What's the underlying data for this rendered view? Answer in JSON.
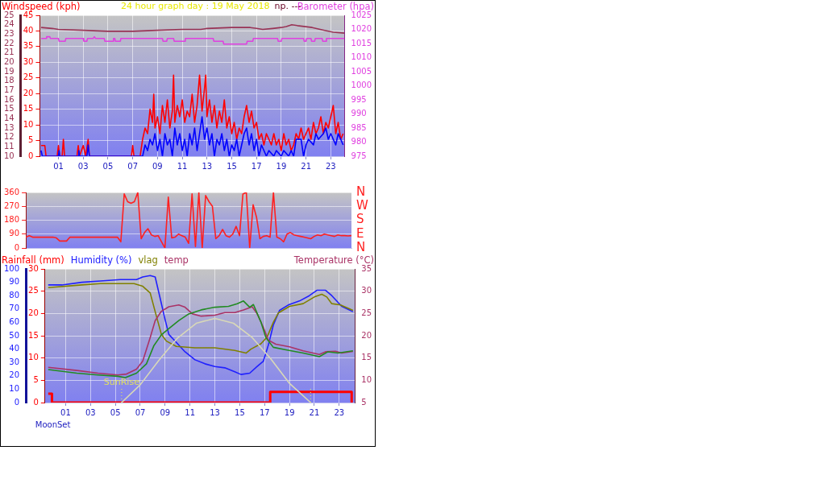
{
  "chart_data": [
    {
      "type": "line",
      "title": "24 hour graph day : 19 May 2018",
      "ylabel": "Windspeed (kph)",
      "y2label": "Barometer (hpa)",
      "annotations": [
        "np. ---"
      ],
      "xlim": [
        -0.5,
        24.12
      ],
      "xticks": [
        {
          "value": 1,
          "label": "01"
        },
        {
          "value": 3,
          "label": "03"
        },
        {
          "value": 5,
          "label": "05"
        },
        {
          "value": 7,
          "label": "07"
        },
        {
          "value": 9,
          "label": "09"
        },
        11,
        13,
        15,
        17,
        19,
        21,
        23
      ],
      "ylim": [
        0,
        45
      ],
      "yticks": [
        0,
        5,
        10,
        15,
        20,
        25,
        30,
        35,
        40,
        45
      ],
      "y2lim": [
        975,
        1025
      ],
      "y2ticks": [
        975,
        980,
        985,
        990,
        995,
        1000,
        1005,
        1010,
        1015,
        1020,
        1025
      ],
      "y3lim": [
        10,
        25
      ],
      "y3ticks": [
        10,
        11,
        12,
        13,
        14,
        15,
        16,
        17,
        18,
        19,
        20,
        21,
        22,
        23,
        24,
        25
      ],
      "grid": true,
      "legend": false,
      "marker": "none",
      "line_style": "solid",
      "series": [
        {
          "color": "#ff0000",
          "x": [
            -0.4,
            -0.1,
            0,
            0.9,
            1.0,
            1.1,
            1.3,
            1.4,
            1.5,
            2.5,
            2.6,
            2.7,
            3.0,
            3.1,
            3.2,
            3.4,
            3.5,
            6.9,
            7.0,
            7.1,
            7.6,
            7.8,
            8.0,
            8.2,
            8.4,
            8.6,
            8.7,
            8.8,
            9.0,
            9.2,
            9.4,
            9.6,
            9.8,
            10.0,
            10.2,
            10.3,
            10.4,
            10.6,
            10.8,
            11.0,
            11.2,
            11.4,
            11.6,
            11.8,
            12.0,
            12.2,
            12.4,
            12.6,
            12.8,
            12.9,
            13.0,
            13.2,
            13.4,
            13.6,
            13.8,
            14.0,
            14.2,
            14.4,
            14.6,
            14.8,
            15.0,
            15.2,
            15.4,
            15.6,
            15.8,
            16.0,
            16.2,
            16.4,
            16.6,
            16.8,
            17.0,
            17.2,
            17.4,
            17.6,
            17.8,
            18.0,
            18.2,
            18.4,
            18.6,
            18.8,
            19.0,
            19.2,
            19.4,
            19.6,
            19.8,
            20.0,
            20.2,
            20.4,
            20.6,
            20.8,
            21.0,
            21.2,
            21.4,
            21.6,
            21.8,
            22.0,
            22.2,
            22.4,
            22.6,
            22.8,
            23.0,
            23.2,
            23.4,
            23.6,
            23.8,
            24.0
          ],
          "values": [
            3.4,
            3.4,
            0,
            0,
            3.4,
            0,
            0,
            5.4,
            0,
            0,
            3.4,
            0,
            3.4,
            1.8,
            0,
            5.4,
            0,
            0,
            3.4,
            0,
            0,
            5.4,
            9,
            7.2,
            15,
            10.8,
            19.8,
            9,
            12.6,
            7.2,
            16.2,
            10.8,
            18,
            9,
            14.4,
            25.9,
            10.8,
            16.2,
            12.6,
            18,
            10.8,
            14.4,
            12.6,
            19.8,
            10.8,
            16.2,
            25.9,
            14.4,
            21.6,
            25.9,
            12.6,
            18,
            10.8,
            16.2,
            9,
            14.4,
            10.8,
            18,
            9,
            12.6,
            7.2,
            10.8,
            5.4,
            9,
            7.2,
            12.6,
            16.2,
            10.8,
            14.4,
            9,
            10.8,
            5.4,
            7.2,
            3.6,
            7.2,
            5.4,
            3.6,
            7.2,
            3.6,
            5.4,
            1.8,
            7.2,
            3.6,
            5.4,
            1.8,
            3.6,
            7.2,
            5.4,
            9,
            5.4,
            7.2,
            9,
            5.4,
            10.8,
            7.2,
            9,
            12.6,
            7.2,
            10.8,
            9,
            12.6,
            16.2,
            7.2,
            10.8,
            5.4,
            7.2
          ]
        },
        {
          "color": "#0000ff",
          "x": [
            -0.4,
            -0.3,
            1.0,
            1.05,
            1.1,
            2.6,
            2.65,
            2.7,
            3.3,
            3.4,
            3.5,
            7.8,
            8.0,
            8.2,
            8.4,
            8.6,
            8.8,
            9.0,
            9.2,
            9.4,
            9.6,
            9.8,
            10.0,
            10.2,
            10.4,
            10.6,
            10.8,
            11.0,
            11.2,
            11.4,
            11.6,
            11.8,
            12.0,
            12.2,
            12.4,
            12.6,
            12.8,
            13.0,
            13.2,
            13.4,
            13.6,
            13.8,
            14.0,
            14.2,
            14.4,
            14.6,
            14.8,
            15.0,
            15.2,
            15.4,
            15.6,
            15.8,
            16.0,
            16.2,
            16.4,
            16.6,
            16.8,
            17.0,
            17.2,
            17.4,
            17.6,
            17.8,
            18.0,
            18.4,
            18.6,
            19.0,
            19.2,
            19.6,
            19.8,
            20.0,
            20.2,
            20.6,
            20.8,
            21.0,
            21.2,
            21.6,
            21.8,
            22.0,
            22.4,
            22.6,
            22.8,
            23.0,
            23.4,
            23.6,
            23.8,
            24.0
          ],
          "values": [
            1.8,
            0,
            0,
            1.8,
            0,
            0,
            1.8,
            0,
            0,
            3.6,
            0,
            0,
            3.6,
            1.8,
            5.4,
            3.6,
            7.2,
            1.8,
            5.4,
            0,
            7.2,
            3.6,
            5.4,
            0,
            9,
            3.6,
            7.2,
            1.8,
            5.4,
            0,
            7.2,
            3.6,
            9,
            1.8,
            7.2,
            12.6,
            5.4,
            9,
            3.6,
            7.2,
            0,
            5.4,
            3.6,
            7.2,
            1.8,
            5.4,
            0,
            3.6,
            1.8,
            5.4,
            0,
            3.6,
            7.2,
            9,
            3.6,
            7.2,
            1.8,
            5.4,
            0,
            3.6,
            1.8,
            0,
            1.8,
            0,
            1.8,
            0,
            1.8,
            0,
            1.8,
            0,
            5.4,
            5.4,
            0,
            3.6,
            5.4,
            3.6,
            7.2,
            5.4,
            7.2,
            9,
            5.4,
            7.2,
            3.6,
            7.2,
            5.4,
            3.6
          ]
        },
        {
          "color": "#e040e0",
          "axis": "y2",
          "x": [
            -0.4,
            0.0,
            0.05,
            0.3,
            0.35,
            1.0,
            1.05,
            1.55,
            1.6,
            3.0,
            3.05,
            3.3,
            3.35,
            3.8,
            3.9,
            4.0,
            4.7,
            4.75,
            5.4,
            5.45,
            5.55,
            5.6,
            6.0,
            6.05,
            9.4,
            9.45,
            9.75,
            9.8,
            10.3,
            10.35,
            11.2,
            11.25,
            13.5,
            13.55,
            14.3,
            14.35,
            16.2,
            16.25,
            16.7,
            16.75,
            18.7,
            18.75,
            19.0,
            19.05,
            20.8,
            20.85,
            21.0,
            21.05,
            21.4,
            21.45,
            21.7,
            21.75,
            22.3,
            22.35,
            22.6,
            22.65,
            24.1
          ],
          "values": [
            1016.8,
            1016.8,
            1017.4,
            1017.4,
            1016.8,
            1016.8,
            1015.8,
            1015.8,
            1016.8,
            1016.8,
            1015.8,
            1015.8,
            1016.8,
            1016.8,
            1017.4,
            1016.8,
            1016.8,
            1015.8,
            1015.8,
            1016.8,
            1016.8,
            1015.8,
            1015.8,
            1016.8,
            1016.8,
            1015.8,
            1015.8,
            1016.8,
            1016.8,
            1015.8,
            1015.8,
            1016.8,
            1016.8,
            1015.8,
            1015.8,
            1014.8,
            1014.8,
            1015.8,
            1015.8,
            1016.8,
            1016.8,
            1015.8,
            1015.8,
            1016.8,
            1016.8,
            1015.8,
            1015.8,
            1016.8,
            1016.8,
            1015.8,
            1015.8,
            1016.8,
            1016.8,
            1015.8,
            1015.8,
            1016.8,
            1016.8
          ]
        },
        {
          "color": "#993355",
          "axis": "y3",
          "x": [
            -0.4,
            0.5,
            1.0,
            3.0,
            5.0,
            7.0,
            9.0,
            11.0,
            12.5,
            13.0,
            15.0,
            16.5,
            17.0,
            17.5,
            18.3,
            19.0,
            19.4,
            19.85,
            20.3,
            21.5,
            22.5,
            23.2,
            24.1
          ],
          "values": [
            23.7,
            23.6,
            23.5,
            23.4,
            23.3,
            23.3,
            23.4,
            23.5,
            23.5,
            23.6,
            23.7,
            23.7,
            23.6,
            23.5,
            23.6,
            23.7,
            23.8,
            24.0,
            23.9,
            23.7,
            23.4,
            23.2,
            23.1
          ]
        }
      ]
    },
    {
      "type": "line",
      "categories": [
        null,
        null,
        null,
        null,
        null,
        null,
        null,
        null,
        null,
        null,
        null,
        null,
        null,
        null,
        null,
        null,
        null,
        null,
        null,
        null,
        null,
        null,
        null,
        null,
        null,
        null,
        null,
        null,
        null,
        null,
        null,
        null,
        null,
        null,
        null,
        null,
        null,
        null,
        null,
        null,
        null,
        null,
        null,
        null,
        null,
        null,
        null,
        null,
        null,
        null,
        null,
        null,
        null,
        null,
        null,
        null,
        null,
        null,
        null,
        null,
        null,
        null,
        null,
        null,
        null,
        null,
        null,
        null,
        null,
        null,
        null,
        null,
        null,
        null,
        null,
        null,
        null,
        null,
        null,
        null,
        null,
        null,
        null,
        null,
        null,
        null,
        null,
        null,
        null,
        null,
        null,
        null,
        null,
        null,
        null,
        null,
        null
      ],
      "ylim": [
        0,
        360
      ],
      "yticks": [
        0,
        90,
        180,
        270,
        360
      ],
      "annotations": [
        "N",
        "W",
        "S",
        "E",
        "N"
      ],
      "grid": "y",
      "legend": false,
      "marker": "none",
      "line_style": "solid",
      "series": [
        {
          "color": "#ff2020",
          "values": [
            70,
            80,
            70,
            70,
            70,
            70,
            70,
            70,
            70,
            65,
            45,
            45,
            45,
            70,
            70,
            70,
            70,
            70,
            70,
            70,
            70,
            70,
            70,
            70,
            70,
            70,
            70,
            70,
            40,
            350,
            300,
            290,
            300,
            360,
            60,
            100,
            125,
            85,
            75,
            80,
            40,
            0,
            330,
            65,
            70,
            90,
            80,
            70,
            30,
            350,
            10,
            360,
            0,
            340,
            300,
            270,
            60,
            80,
            120,
            80,
            70,
            90,
            140,
            80,
            350,
            360,
            0,
            280,
            200,
            60,
            75,
            80,
            70,
            360,
            70,
            60,
            40,
            90,
            100,
            85,
            80,
            75,
            70,
            65,
            60,
            75,
            85,
            80,
            90,
            85,
            80,
            75,
            85,
            80,
            80,
            78,
            80
          ]
        }
      ]
    },
    {
      "type": "line",
      "ylabel": "Rainfall (mm)",
      "y3label": "Humidity (%)",
      "y2label": "Temperature (°C)",
      "annotations": [
        "MoonSet"
      ],
      "xlim": [
        -0.66,
        24.26
      ],
      "xticks": [
        {
          "value": 1,
          "label": "01"
        },
        {
          "value": 3,
          "label": "03"
        },
        {
          "value": 5,
          "label": "05"
        },
        {
          "value": 7,
          "label": "07"
        },
        {
          "value": 9,
          "label": "09"
        },
        11,
        13,
        15,
        17,
        19,
        21,
        23
      ],
      "ylim": [
        0,
        30
      ],
      "yticks": [
        0,
        5,
        10,
        15,
        20,
        25,
        30
      ],
      "y3lim": [
        0,
        100
      ],
      "y3ticks": [
        0,
        10,
        20,
        30,
        40,
        50,
        60,
        70,
        80,
        90,
        100
      ],
      "y2lim": [
        5,
        35
      ],
      "y2ticks": [
        5,
        10,
        15,
        20,
        25,
        30,
        35
      ],
      "ref_lines": [
        {
          "axis": "x",
          "value": 5.5,
          "label": "SunRise",
          "color": "#e0e060",
          "line_style": "dotted"
        },
        {
          "axis": "x",
          "value": 20.7,
          "color": "#e0e060",
          "line_style": "dotted"
        }
      ],
      "grid": true,
      "legend": false,
      "marker": "none",
      "line_style": "solid",
      "series": [
        {
          "color": "#ff0000",
          "x": [
            -0.4,
            -0.1,
            -0.1,
            17.45,
            17.45,
            24.0,
            24.0
          ],
          "values": [
            2,
            2,
            0,
            0,
            2.4,
            2.4,
            0
          ]
        },
        {
          "color": "#2020ff",
          "axis": "y3",
          "x": [
            -0.4,
            0.7,
            2.3,
            3.8,
            5.4,
            6.7,
            7.2,
            7.8,
            8.2,
            8.6,
            9.0,
            9.3,
            9.9,
            10.6,
            11.4,
            12.2,
            13.0,
            13.8,
            14.6,
            15.1,
            15.8,
            16.4,
            16.9,
            17.3,
            17.7,
            18.2,
            18.9,
            19.8,
            20.6,
            21.2,
            21.9,
            22.4,
            23.2,
            24.1
          ],
          "values": [
            88,
            88,
            90,
            91,
            92,
            92,
            94,
            95,
            94,
            78,
            62,
            51,
            45,
            38,
            32,
            29,
            27,
            26,
            23,
            21,
            22,
            27,
            31,
            43,
            58,
            69,
            73,
            76,
            80,
            84,
            84,
            80,
            72,
            68
          ]
        },
        {
          "name": "vlag",
          "color": "#808000",
          "axis": "y3",
          "x": [
            -0.4,
            2.3,
            3.8,
            6.5,
            7.2,
            7.8,
            8.2,
            8.7,
            9.1,
            9.9,
            11.4,
            13.0,
            14.6,
            15.5,
            15.9,
            16.7,
            17.2,
            17.7,
            18.1,
            19.0,
            20.1,
            21.0,
            21.6,
            22.0,
            22.4,
            23.1,
            24.1
          ],
          "values": [
            86,
            88,
            89,
            89,
            87,
            82,
            68,
            51,
            46,
            42,
            41,
            41,
            39,
            37,
            40,
            44,
            49,
            60,
            67,
            72,
            74,
            79,
            81,
            79,
            74,
            73,
            69
          ]
        },
        {
          "name": "temp",
          "color": "#aa3366",
          "axis": "y2",
          "x": [
            -0.4,
            1.9,
            3.6,
            5.2,
            5.9,
            6.7,
            7.2,
            7.8,
            8.2,
            8.7,
            9.3,
            10.1,
            10.6,
            11.2,
            11.9,
            13.0,
            13.8,
            14.6,
            15.3,
            16.0,
            16.4,
            16.9,
            17.3,
            17.9,
            19.0,
            20.1,
            21.4,
            21.9,
            22.7,
            23.2,
            24.1
          ],
          "values": [
            12.9,
            12.2,
            11.6,
            11.2,
            11.4,
            12.5,
            14.3,
            19.6,
            23.4,
            25.5,
            26.5,
            26.9,
            26.4,
            24.9,
            24.4,
            24.6,
            25.2,
            25.2,
            25.8,
            26.5,
            24.9,
            21.9,
            19.0,
            18.1,
            17.5,
            16.6,
            15.8,
            16.4,
            16.5,
            16.1,
            16.5
          ]
        },
        {
          "color": "#228b22",
          "axis": "y2",
          "x": [
            -0.4,
            1.9,
            3.6,
            5.2,
            5.8,
            6.7,
            7.5,
            8.1,
            8.7,
            9.3,
            10.1,
            10.9,
            11.9,
            13.0,
            14.1,
            14.8,
            15.3,
            15.8,
            16.1,
            16.7,
            17.1,
            17.7,
            18.8,
            20.1,
            21.4,
            22.1,
            22.9,
            24.1
          ],
          "values": [
            12.4,
            11.6,
            11.2,
            10.9,
            10.6,
            11.6,
            13.7,
            17.8,
            20.2,
            21.6,
            23.4,
            24.9,
            25.8,
            26.4,
            26.6,
            27.2,
            27.8,
            26.4,
            27.0,
            23.1,
            19.6,
            17.4,
            16.8,
            16.1,
            15.3,
            16.4,
            16.1,
            16.6
          ]
        },
        {
          "color": "#d8d8b8",
          "axis": "y2",
          "x": [
            5.5,
            7,
            8.5,
            10,
            11.5,
            13,
            14.5,
            16,
            17.5,
            19,
            20.7
          ],
          "values": [
            5,
            9,
            14.5,
            19.5,
            22.8,
            23.9,
            22.8,
            19.6,
            14.8,
            9.3,
            5
          ]
        }
      ]
    }
  ]
}
